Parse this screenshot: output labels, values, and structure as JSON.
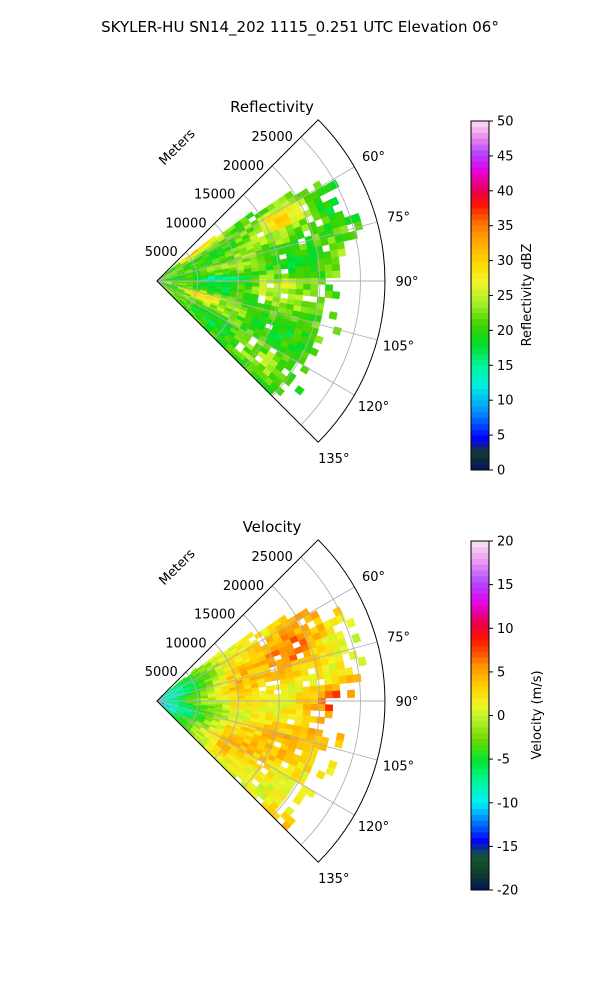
{
  "figure": {
    "suptitle": "SKYLER-HU  SN14_202  1115_0.251 UTC Elevation 06°"
  },
  "chart_data": [
    {
      "type": "heatmap",
      "projection": "polar-sector",
      "title": "Reflectivity",
      "radial_label": "Meters",
      "r_ticks": [
        "5000",
        "10000",
        "15000",
        "20000",
        "25000"
      ],
      "r_max": 28000,
      "theta_range_deg": [
        45,
        135
      ],
      "theta_ticks": [
        "60°",
        "75°",
        "90°",
        "105°",
        "120°",
        "135°"
      ],
      "colorbar": {
        "label": "Reflectivity dBZ",
        "range": [
          0,
          50
        ],
        "ticks": [
          "0",
          "5",
          "10",
          "15",
          "20",
          "25",
          "30",
          "35",
          "40",
          "45",
          "50"
        ]
      },
      "field_summary": {
        "typical_values": "18-26 dBZ over most of the echo",
        "max_cores": "about 30-35 dBZ near 50° at 5-10 km, 100-110° at 5-8 km, and near 60° at 15-20 km",
        "min_region": "about 12-16 dBZ band along ~85-95° at 5-12 km",
        "coverage": "echo from about 50° to 135°, beyond ~20 km only between 55° and 100°"
      }
    },
    {
      "type": "heatmap",
      "projection": "polar-sector",
      "title": "Velocity",
      "radial_label": "Meters",
      "r_ticks": [
        "5000",
        "10000",
        "15000",
        "20000",
        "25000"
      ],
      "r_max": 28000,
      "theta_range_deg": [
        45,
        135
      ],
      "theta_ticks": [
        "60°",
        "75°",
        "90°",
        "105°",
        "120°",
        "135°"
      ],
      "colorbar": {
        "label": "Velocity (m/s)",
        "range": [
          -20,
          20
        ],
        "ticks": [
          "-20",
          "-15",
          "-10",
          "-5",
          "0",
          "5",
          "10",
          "15",
          "20"
        ]
      },
      "field_summary": {
        "near_range": "about -10 to -12 m/s within ~3 km of the radar",
        "gradient": "-8 m/s at 3 km rising through -4 m/s near 6 km to about 0 m/s beyond 8 km",
        "far_range": "0 to +3 m/s over most of the echo beyond 10 km",
        "max": "about +7 m/s near 90° at 20-25 km"
      }
    }
  ]
}
